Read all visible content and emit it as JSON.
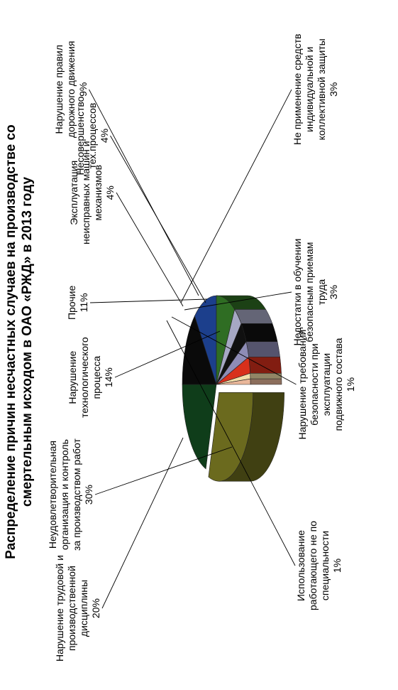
{
  "chart_data": {
    "type": "pie",
    "title_lines": [
      "Распределение причин несчастных случаев на производстве со",
      "смертельным исходом в ОАО «РЖД»  в 2013 году"
    ],
    "slices": [
      {
        "label_lines": [
          "Неудовлетворительная",
          "организация и контроль",
          "за производством работ"
        ],
        "value_label": "30%",
        "value": 30,
        "color": "#6b6a1e"
      },
      {
        "label_lines": [
          "Нарушение трудовой и",
          "производственной",
          "дисциплины"
        ],
        "value_label": "20%",
        "value": 20,
        "color": "#0f3d1a"
      },
      {
        "label_lines": [
          "Нарушение",
          "технологического",
          "процесса"
        ],
        "value_label": "14%",
        "value": 14,
        "color": "#0a0a0a"
      },
      {
        "label_lines": [
          "Прочие"
        ],
        "value_label": "11%",
        "value": 11,
        "color": "#1c3f8c"
      },
      {
        "label_lines": [
          "Нарушение правил",
          "дорожного движения"
        ],
        "value_label": "9%",
        "value": 9,
        "color": "#2f6d23"
      },
      {
        "label_lines": [
          "Несовершенство",
          "тех.процессов"
        ],
        "value_label": "4%",
        "value": 4,
        "color": "#a6a8c4"
      },
      {
        "label_lines": [
          "Эксплуатация",
          "неисправных машин и",
          "механизмов"
        ],
        "value_label": "4%",
        "value": 4,
        "color": "#101010"
      },
      {
        "label_lines": [
          "Не применение средств",
          "индивидуальной и",
          "коллективной защиты"
        ],
        "value_label": "3%",
        "value": 3,
        "color": "#8e8cb6"
      },
      {
        "label_lines": [
          "Недостатки в обучении",
          "безопасным приемам",
          "труда"
        ],
        "value_label": "3%",
        "value": 3,
        "color": "#d8301c"
      },
      {
        "label_lines": [
          "Нарушение требований",
          "безопасности при",
          "эксплуатации",
          "подвижного состава"
        ],
        "value_label": "1%",
        "value": 1,
        "color": "#f2deaa"
      },
      {
        "label_lines": [
          "Использование",
          "работающего не по",
          "специальности"
        ],
        "value_label": "1%",
        "value": 1,
        "color": "#e9b79a"
      }
    ],
    "legend": "none"
  }
}
